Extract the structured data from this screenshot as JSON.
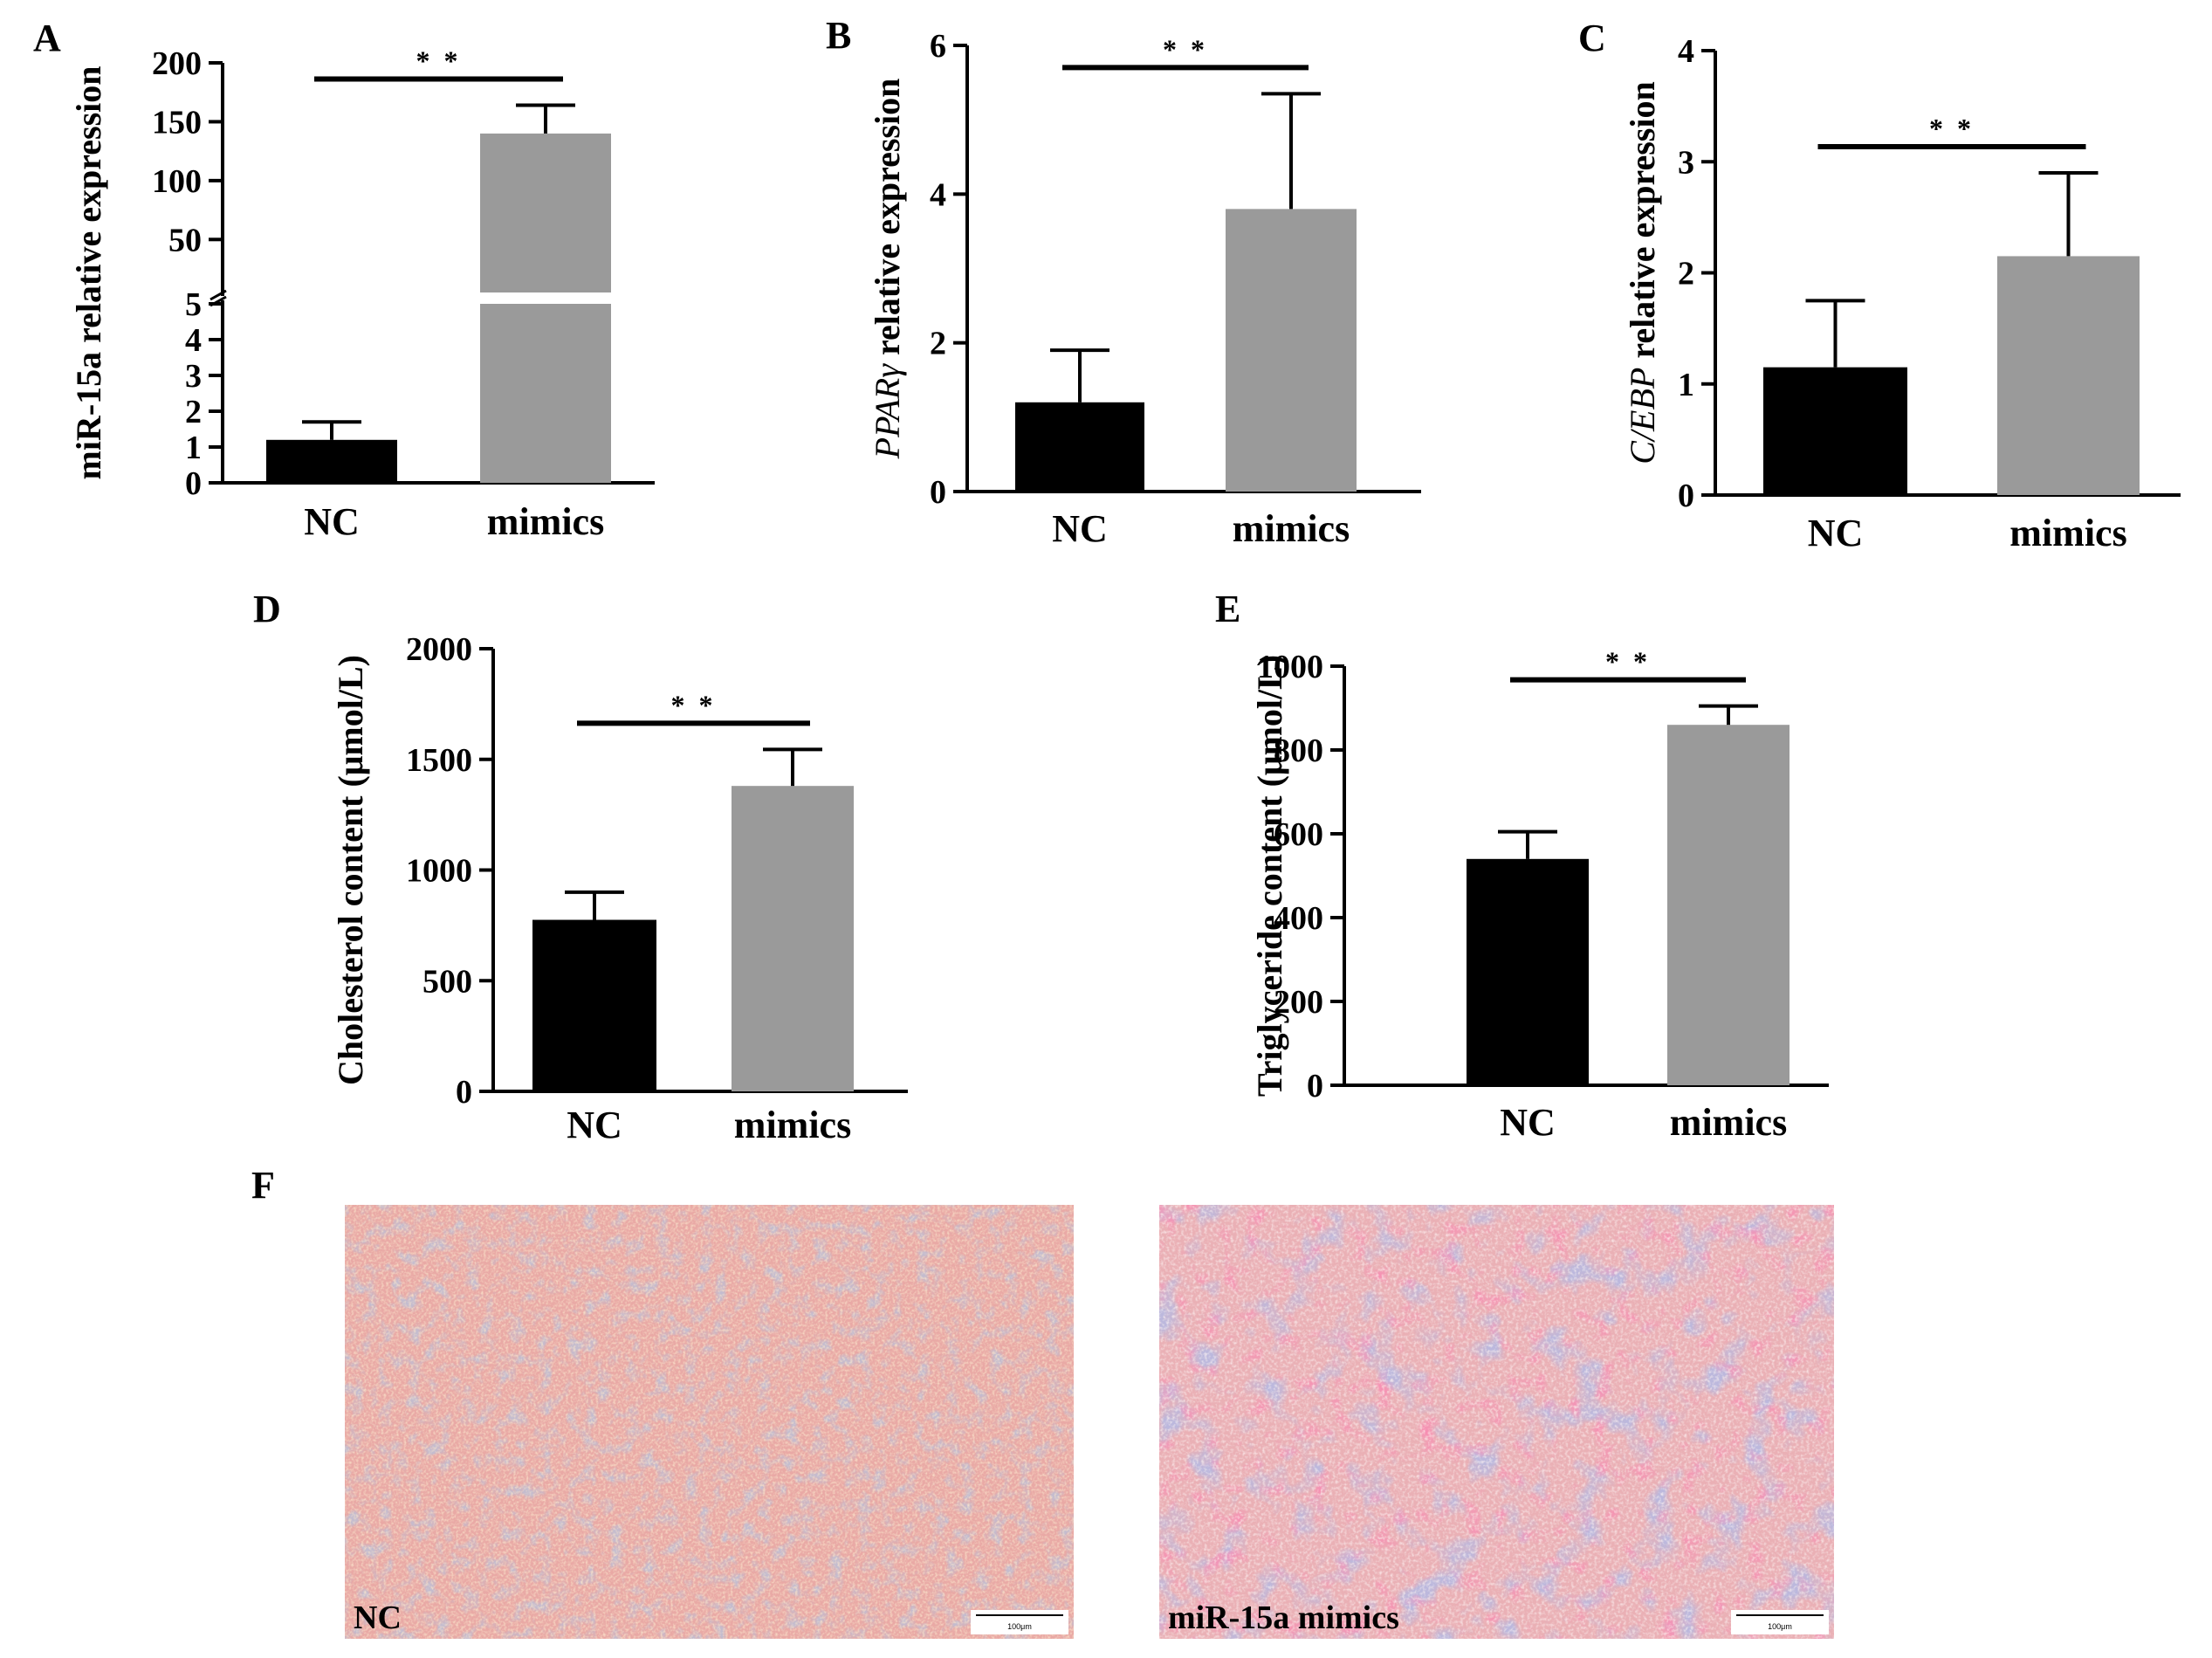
{
  "chart_data": [
    {
      "panel": "A",
      "type": "bar",
      "ylabel": "miR-15a relative expression",
      "ylabel_italic": "",
      "ylabel_rest": "miR-15a relative expression",
      "categories": [
        "NC",
        "mimics"
      ],
      "values": [
        1.2,
        140
      ],
      "errors": [
        0.5,
        24
      ],
      "bar_colors": [
        "#000000",
        "#9a9a9a"
      ],
      "axis_break": true,
      "lower_range": [
        0,
        5
      ],
      "upper_range": [
        5,
        200
      ],
      "lower_ticks": [
        0,
        1,
        2,
        3,
        4,
        5
      ],
      "upper_ticks": [
        50,
        100,
        150,
        200
      ],
      "significance": "**"
    },
    {
      "panel": "B",
      "type": "bar",
      "ylabel_italic": "PPARγ",
      "ylabel_rest": " relative expression",
      "categories": [
        "NC",
        "mimics"
      ],
      "values": [
        1.2,
        3.8
      ],
      "errors": [
        0.7,
        1.55
      ],
      "bar_colors": [
        "#000000",
        "#9a9a9a"
      ],
      "ylim": [
        0,
        6
      ],
      "yticks": [
        0,
        2,
        4,
        6
      ],
      "significance": "**"
    },
    {
      "panel": "C",
      "type": "bar",
      "ylabel_italic": "C/EBP",
      "ylabel_rest": " relative expression",
      "categories": [
        "NC",
        "mimics"
      ],
      "values": [
        1.15,
        2.15
      ],
      "errors": [
        0.6,
        0.75
      ],
      "bar_colors": [
        "#000000",
        "#9a9a9a"
      ],
      "ylim": [
        0,
        4
      ],
      "yticks": [
        0,
        1,
        2,
        3,
        4
      ],
      "significance": "**"
    },
    {
      "panel": "D",
      "type": "bar",
      "ylabel_italic": "",
      "ylabel_rest": "Cholesterol content (μmol/L)",
      "categories": [
        "NC",
        "mimics"
      ],
      "values": [
        775,
        1380
      ],
      "errors": [
        125,
        165
      ],
      "bar_colors": [
        "#000000",
        "#9a9a9a"
      ],
      "ylim": [
        0,
        2000
      ],
      "yticks": [
        0,
        500,
        1000,
        1500,
        2000
      ],
      "significance": "**"
    },
    {
      "panel": "E",
      "type": "bar",
      "ylabel_italic": "",
      "ylabel_rest": "Triglyceride content (μmol/L)",
      "categories": [
        "NC",
        "mimics"
      ],
      "values": [
        540,
        860
      ],
      "errors": [
        65,
        45
      ],
      "bar_colors": [
        "#000000",
        "#9a9a9a"
      ],
      "ylim": [
        0,
        1000
      ],
      "yticks": [
        0,
        200,
        400,
        600,
        800,
        1000
      ],
      "significance": "**"
    }
  ],
  "micrographs": {
    "panel": "F",
    "images": [
      {
        "label": "NC",
        "scale_bar": "100μm"
      },
      {
        "label": "miR-15a mimics",
        "scale_bar": "100μm"
      }
    ]
  }
}
